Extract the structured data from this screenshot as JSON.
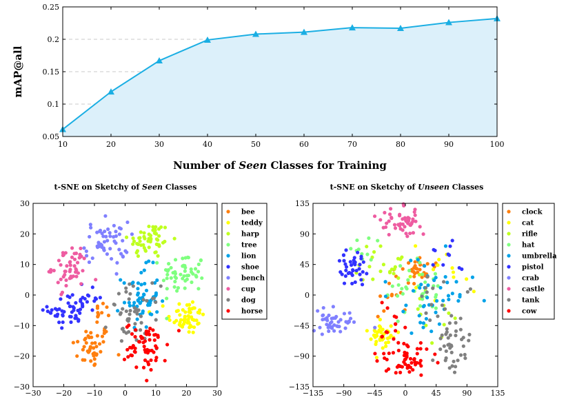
{
  "chart_data": [
    {
      "type": "area",
      "x": [
        10,
        20,
        30,
        40,
        50,
        60,
        70,
        80,
        90,
        100
      ],
      "y": [
        0.061,
        0.119,
        0.167,
        0.199,
        0.208,
        0.211,
        0.218,
        0.217,
        0.226,
        0.232
      ],
      "xlabel_parts": [
        "Number of ",
        "Seen",
        " Classes for Training"
      ],
      "ylabel": "mAP@all",
      "xlim": [
        10,
        100
      ],
      "ylim": [
        0.05,
        0.25
      ],
      "xticks": [
        "10",
        "20",
        "30",
        "40",
        "50",
        "60",
        "70",
        "80",
        "90",
        "100"
      ],
      "yticks": [
        "0.05",
        "0.1",
        "0.15",
        "0.2",
        "0.25"
      ],
      "grid": "horizontal dashed",
      "line_color": "#1aaee3",
      "fill_color": "#dcf0fa",
      "marker": "triangle"
    },
    {
      "type": "scatter",
      "title_parts": [
        "t-SNE on Sketchy of ",
        "Seen",
        " Classes"
      ],
      "xlim": [
        -30,
        30
      ],
      "ylim": [
        -30,
        30
      ],
      "xticks": [
        "−30",
        "−20",
        "−10",
        "0",
        "10",
        "20",
        "30"
      ],
      "yticks": [
        "−30",
        "−20",
        "−10",
        "0",
        "10",
        "20",
        "30"
      ],
      "legend_position": "right",
      "series": [
        {
          "name": "bee",
          "color": "#ff7f0e",
          "clusters": [
            [
              -11,
              -17,
              3.2,
              3.5,
              42
            ],
            [
              -7,
              -7,
              1.5,
              2.5,
              12
            ]
          ]
        },
        {
          "name": "teddy",
          "color": "#ffff00",
          "clusters": [
            [
              20,
              -7,
              3,
              3,
              55
            ]
          ]
        },
        {
          "name": "harp",
          "color": "#bfff1f",
          "clusters": [
            [
              8,
              18,
              3.5,
              3,
              55
            ]
          ]
        },
        {
          "name": "tree",
          "color": "#7fff7f",
          "clusters": [
            [
              19,
              7,
              3.5,
              3.5,
              55
            ]
          ]
        },
        {
          "name": "lion",
          "color": "#00a2e8",
          "clusters": [
            [
              5,
              -1,
              3,
              5,
              55
            ]
          ]
        },
        {
          "name": "shoe",
          "color": "#3232ff",
          "clusters": [
            [
              -18,
              -5,
              3.5,
              2.5,
              45
            ],
            [
              -12,
              -1,
              2.5,
              2.5,
              14
            ]
          ]
        },
        {
          "name": "bench",
          "color": "#8080ff",
          "clusters": [
            [
              -6,
              17,
              3.5,
              3.5,
              55
            ]
          ]
        },
        {
          "name": "cup",
          "color": "#ee5ca1",
          "clusters": [
            [
              -18,
              9,
              3,
              3.5,
              50
            ]
          ]
        },
        {
          "name": "dog",
          "color": "#808080",
          "clusters": [
            [
              3,
              -7,
              4,
              5,
              50
            ]
          ]
        },
        {
          "name": "horse",
          "color": "#ff0000",
          "clusters": [
            [
              7,
              -17,
              3.5,
              4,
              60
            ]
          ]
        }
      ]
    },
    {
      "type": "scatter",
      "title_parts": [
        "t-SNE on Sketchy of ",
        "Unseen",
        " Classes"
      ],
      "xlim": [
        -135,
        135
      ],
      "ylim": [
        -135,
        135
      ],
      "xticks": [
        "−135",
        "−90",
        "−45",
        "0",
        "45",
        "90",
        "135"
      ],
      "yticks": [
        "−135",
        "−90",
        "−45",
        "0",
        "45",
        "90",
        "135"
      ],
      "legend_position": "right",
      "series": [
        {
          "name": "clock",
          "color": "#ff7f0e",
          "clusters": [
            [
              15,
              40,
              14,
              10,
              30
            ],
            [
              -20,
              -2,
              14,
              20,
              10
            ]
          ]
        },
        {
          "name": "cat",
          "color": "#ffff00",
          "clusters": [
            [
              -35,
              -58,
              9,
              12,
              40
            ],
            [
              50,
              30,
              25,
              25,
              12
            ]
          ]
        },
        {
          "name": "rifle",
          "color": "#bfff1f",
          "clusters": [
            [
              -30,
              45,
              20,
              14,
              22
            ],
            [
              45,
              -35,
              25,
              20,
              12
            ]
          ]
        },
        {
          "name": "hat",
          "color": "#7fff7f",
          "clusters": [
            [
              10,
              5,
              25,
              20,
              35
            ],
            [
              -60,
              65,
              15,
              12,
              10
            ]
          ]
        },
        {
          "name": "umbrella",
          "color": "#00a2e8",
          "clusters": [
            [
              40,
              5,
              32,
              28,
              45
            ]
          ]
        },
        {
          "name": "pistol",
          "color": "#3232ff",
          "clusters": [
            [
              -75,
              38,
              11,
              15,
              40
            ],
            [
              60,
              55,
              12,
              10,
              10
            ]
          ]
        },
        {
          "name": "crab",
          "color": "#8080ff",
          "clusters": [
            [
              -105,
              -40,
              16,
              10,
              45
            ]
          ]
        },
        {
          "name": "castle",
          "color": "#ee5ca1",
          "clusters": [
            [
              -5,
              108,
              15,
              10,
              50
            ]
          ]
        },
        {
          "name": "tank",
          "color": "#808080",
          "clusters": [
            [
              72,
              -75,
              12,
              20,
              40
            ],
            [
              55,
              -5,
              20,
              25,
              15
            ]
          ]
        },
        {
          "name": "cow",
          "color": "#ff0000",
          "clusters": [
            [
              5,
              -95,
              18,
              12,
              50
            ],
            [
              -20,
              -60,
              14,
              22,
              18
            ]
          ]
        }
      ]
    }
  ]
}
